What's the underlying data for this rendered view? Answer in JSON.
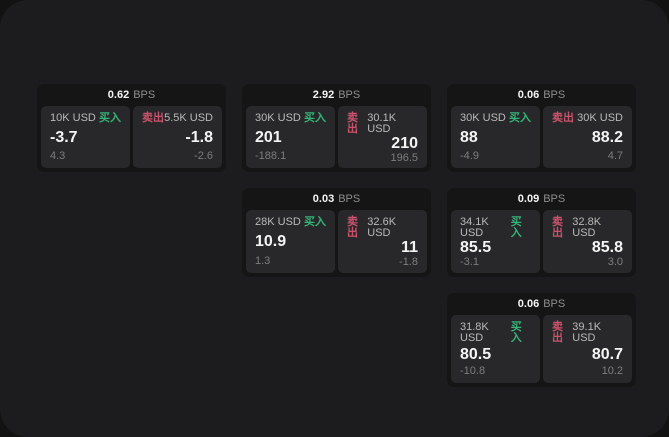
{
  "labels": {
    "bps_suffix": "BPS",
    "buy": "买入",
    "sell": "卖出"
  },
  "colors": {
    "surface": "#1c1c1e",
    "card": "#151516",
    "panel": "#28282a",
    "buy-color": "#35b378",
    "sell-color": "#c9536d"
  },
  "cards": [
    {
      "bps": "0.62",
      "buy": {
        "amount": "10K USD",
        "value": "-3.7",
        "sub": "4.3"
      },
      "sell": {
        "amount": "5.5K USD",
        "value": "-1.8",
        "sub": "-2.6"
      }
    },
    {
      "bps": "2.92",
      "buy": {
        "amount": "30K USD",
        "value": "201",
        "sub": "-188.1"
      },
      "sell": {
        "amount": "30.1K USD",
        "value": "210",
        "sub": "196.5"
      }
    },
    {
      "bps": "0.06",
      "buy": {
        "amount": "30K USD",
        "value": "88",
        "sub": "-4.9"
      },
      "sell": {
        "amount": "30K USD",
        "value": "88.2",
        "sub": "4.7"
      }
    },
    {
      "bps": "0.03",
      "buy": {
        "amount": "28K USD",
        "value": "10.9",
        "sub": "1.3"
      },
      "sell": {
        "amount": "32.6K USD",
        "value": "11",
        "sub": "-1.8"
      }
    },
    {
      "bps": "0.09",
      "buy": {
        "amount": "34.1K USD",
        "value": "85.5",
        "sub": "-3.1"
      },
      "sell": {
        "amount": "32.8K USD",
        "value": "85.8",
        "sub": "3.0"
      }
    },
    {
      "bps": "0.06",
      "buy": {
        "amount": "31.8K USD",
        "value": "80.5",
        "sub": "-10.8"
      },
      "sell": {
        "amount": "39.1K USD",
        "value": "80.7",
        "sub": "10.2"
      }
    }
  ]
}
